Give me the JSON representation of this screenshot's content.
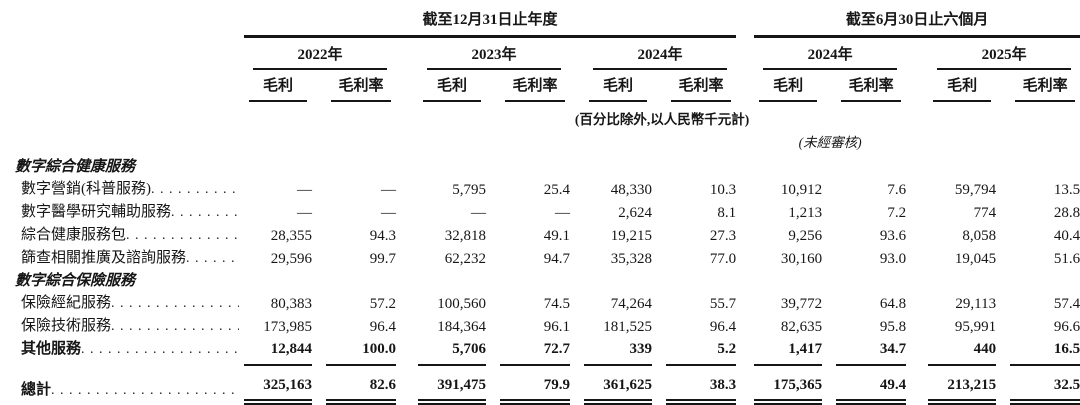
{
  "colors": {
    "background": "#ffffff",
    "text": "#161616",
    "rule": "#161616"
  },
  "document": {
    "period_groups": [
      {
        "title": "截至12月31日止年度",
        "years": [
          "2022年",
          "2023年",
          "2024年"
        ]
      },
      {
        "title": "截至6月30日止六個月",
        "years": [
          "2024年",
          "2025年"
        ]
      }
    ],
    "measure_headers": {
      "gross_profit": "毛利",
      "gross_profit_margin": "毛利率"
    },
    "unit_note": "(百分比除外,以人民幣千元計)",
    "unaudited_note": "(未經審核)",
    "rows": [
      {
        "type": "section",
        "label": "數字綜合健康服務"
      },
      {
        "type": "data",
        "label": "數字營銷(科普服務)",
        "values": [
          "—",
          "—",
          "5,795",
          "25.4",
          "48,330",
          "10.3",
          "10,912",
          "7.6",
          "59,794",
          "13.5"
        ]
      },
      {
        "type": "data",
        "label": "數字醫學研究輔助服務",
        "values": [
          "—",
          "—",
          "—",
          "—",
          "2,624",
          "8.1",
          "1,213",
          "7.2",
          "774",
          "28.8"
        ]
      },
      {
        "type": "data",
        "label": "綜合健康服務包",
        "values": [
          "28,355",
          "94.3",
          "32,818",
          "49.1",
          "19,215",
          "27.3",
          "9,256",
          "93.6",
          "8,058",
          "40.4"
        ]
      },
      {
        "type": "data",
        "label": "篩查相關推廣及諮詢服務",
        "values": [
          "29,596",
          "99.7",
          "62,232",
          "94.7",
          "35,328",
          "77.0",
          "30,160",
          "93.0",
          "19,045",
          "51.6"
        ]
      },
      {
        "type": "section",
        "label": "數字綜合保險服務"
      },
      {
        "type": "data",
        "label": "保險經紀服務",
        "values": [
          "80,383",
          "57.2",
          "100,560",
          "74.5",
          "74,264",
          "55.7",
          "39,772",
          "64.8",
          "29,113",
          "57.4"
        ]
      },
      {
        "type": "data",
        "label": "保險技術服務",
        "values": [
          "173,985",
          "96.4",
          "184,364",
          "96.1",
          "181,525",
          "96.4",
          "82,635",
          "95.8",
          "95,991",
          "96.6"
        ]
      },
      {
        "type": "data",
        "emphasis": true,
        "label": "其他服務",
        "values": [
          "12,844",
          "100.0",
          "5,706",
          "72.7",
          "339",
          "5.2",
          "1,417",
          "34.7",
          "440",
          "16.5"
        ]
      },
      {
        "type": "total",
        "label": "總計",
        "values": [
          "325,163",
          "82.6",
          "391,475",
          "79.9",
          "361,625",
          "38.3",
          "175,365",
          "49.4",
          "213,215",
          "32.5"
        ]
      }
    ]
  }
}
